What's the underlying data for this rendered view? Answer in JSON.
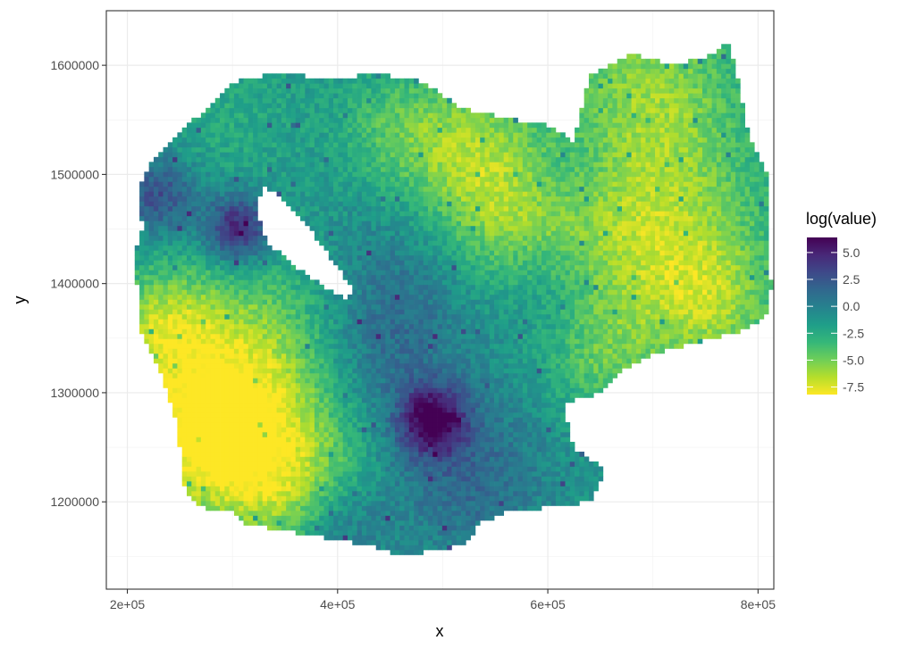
{
  "chart_data": {
    "type": "heatmap",
    "title": "",
    "xlabel": "x",
    "ylabel": "y",
    "xlim": [
      180000,
      815000
    ],
    "ylim": [
      1120000,
      1650000
    ],
    "x_ticks": [
      200000,
      400000,
      600000,
      800000
    ],
    "x_tick_labels": [
      "2e+05",
      "4e+05",
      "6e+05",
      "8e+05"
    ],
    "y_ticks": [
      1200000,
      1300000,
      1400000,
      1500000,
      1600000
    ],
    "y_tick_labels": [
      "1200000",
      "1300000",
      "1400000",
      "1500000",
      "1600000"
    ],
    "grid": true,
    "theme": "bw",
    "legend": {
      "title": "log(value)",
      "position": "right",
      "range": [
        -8.2,
        6.4
      ],
      "ticks": [
        5.0,
        2.5,
        0.0,
        -2.5,
        -5.0,
        -7.5
      ],
      "tick_labels": [
        "5.0",
        "2.5",
        "0.0",
        "-2.5",
        "-5.0",
        "-7.5"
      ],
      "colormap": "viridis-reversed",
      "colors": [
        "#fde725",
        "#b5de2b",
        "#6ece58",
        "#35b779",
        "#1f9e89",
        "#26828e",
        "#31688e",
        "#3e4989",
        "#482878",
        "#440154"
      ]
    },
    "region_outline": [
      [
        215000,
        1500000
      ],
      [
        240000,
        1530000
      ],
      [
        275000,
        1560000
      ],
      [
        300000,
        1585000
      ],
      [
        345000,
        1593000
      ],
      [
        390000,
        1588000
      ],
      [
        440000,
        1592000
      ],
      [
        480000,
        1585000
      ],
      [
        520000,
        1560000
      ],
      [
        560000,
        1552000
      ],
      [
        600000,
        1545000
      ],
      [
        625000,
        1530000
      ],
      [
        640000,
        1590000
      ],
      [
        680000,
        1610000
      ],
      [
        720000,
        1600000
      ],
      [
        760000,
        1610000
      ],
      [
        770000,
        1625000
      ],
      [
        778000,
        1600000
      ],
      [
        790000,
        1540000
      ],
      [
        800000,
        1520000
      ],
      [
        808000,
        1500000
      ],
      [
        812000,
        1460000
      ],
      [
        808000,
        1420000
      ],
      [
        813000,
        1400000
      ],
      [
        808000,
        1370000
      ],
      [
        780000,
        1355000
      ],
      [
        735000,
        1345000
      ],
      [
        700000,
        1335000
      ],
      [
        670000,
        1320000
      ],
      [
        650000,
        1300000
      ],
      [
        615000,
        1290000
      ],
      [
        625000,
        1250000
      ],
      [
        655000,
        1230000
      ],
      [
        640000,
        1200000
      ],
      [
        600000,
        1195000
      ],
      [
        560000,
        1190000
      ],
      [
        535000,
        1180000
      ],
      [
        520000,
        1160000
      ],
      [
        490000,
        1155000
      ],
      [
        465000,
        1150000
      ],
      [
        430000,
        1160000
      ],
      [
        400000,
        1165000
      ],
      [
        370000,
        1170000
      ],
      [
        340000,
        1175000
      ],
      [
        310000,
        1180000
      ],
      [
        300000,
        1190000
      ],
      [
        270000,
        1195000
      ],
      [
        255000,
        1210000
      ],
      [
        250000,
        1250000
      ],
      [
        245000,
        1280000
      ],
      [
        235000,
        1310000
      ],
      [
        220000,
        1340000
      ],
      [
        210000,
        1360000
      ],
      [
        210000,
        1395000
      ],
      [
        205000,
        1420000
      ],
      [
        215000,
        1450000
      ],
      [
        210000,
        1480000
      ]
    ],
    "lake_outline": [
      [
        330000,
        1490000
      ],
      [
        345000,
        1480000
      ],
      [
        360000,
        1465000
      ],
      [
        378000,
        1445000
      ],
      [
        395000,
        1420000
      ],
      [
        415000,
        1395000
      ],
      [
        410000,
        1385000
      ],
      [
        390000,
        1395000
      ],
      [
        368000,
        1410000
      ],
      [
        348000,
        1425000
      ],
      [
        332000,
        1440000
      ],
      [
        325000,
        1460000
      ],
      [
        325000,
        1478000
      ]
    ],
    "value_field": {
      "base_value": -1.2,
      "features": [
        {
          "x": 310000,
          "y": 1310000,
          "radius": 70000,
          "value": -7.5
        },
        {
          "x": 275000,
          "y": 1250000,
          "radius": 45000,
          "value": -6.0
        },
        {
          "x": 230000,
          "y": 1360000,
          "radius": 35000,
          "value": -5.0
        },
        {
          "x": 360000,
          "y": 1210000,
          "radius": 45000,
          "value": -5.0
        },
        {
          "x": 560000,
          "y": 1460000,
          "radius": 55000,
          "value": -5.5
        },
        {
          "x": 520000,
          "y": 1530000,
          "radius": 45000,
          "value": -4.5
        },
        {
          "x": 450000,
          "y": 1540000,
          "radius": 40000,
          "value": -3.5
        },
        {
          "x": 700000,
          "y": 1440000,
          "radius": 75000,
          "value": -6.5
        },
        {
          "x": 700000,
          "y": 1585000,
          "radius": 60000,
          "value": -5.0
        },
        {
          "x": 760000,
          "y": 1380000,
          "radius": 40000,
          "value": -4.0
        },
        {
          "x": 650000,
          "y": 1330000,
          "radius": 40000,
          "value": -3.5
        },
        {
          "x": 300000,
          "y": 1550000,
          "radius": 45000,
          "value": -2.5
        },
        {
          "x": 305000,
          "y": 1450000,
          "radius": 22000,
          "value": 5.5
        },
        {
          "x": 230000,
          "y": 1480000,
          "radius": 25000,
          "value": 3.0
        },
        {
          "x": 490000,
          "y": 1275000,
          "radius": 22000,
          "value": 6.0
        },
        {
          "x": 520000,
          "y": 1230000,
          "radius": 55000,
          "value": 1.5
        },
        {
          "x": 470000,
          "y": 1400000,
          "radius": 55000,
          "value": 1.0
        },
        {
          "x": 430000,
          "y": 1330000,
          "radius": 45000,
          "value": 0.8
        },
        {
          "x": 600000,
          "y": 1400000,
          "radius": 40000,
          "value": 1.0
        },
        {
          "x": 400000,
          "y": 1180000,
          "radius": 30000,
          "value": 1.5
        },
        {
          "x": 620000,
          "y": 1500000,
          "radius": 35000,
          "value": 0.5
        }
      ]
    }
  }
}
